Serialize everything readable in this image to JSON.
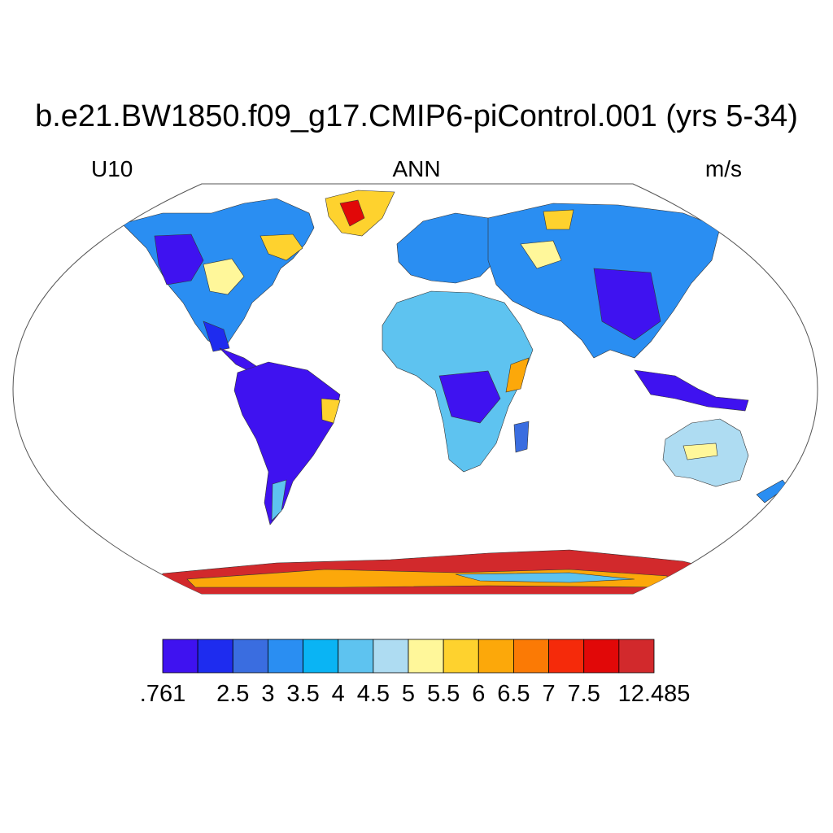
{
  "title": "b.e21.BW1850.f09_g17.CMIP6-piControl.001 (yrs 5-34)",
  "subtitle_left": "U10",
  "subtitle_center": "ANN",
  "subtitle_right": "m/s",
  "projection": "Robinson",
  "colorbar": {
    "colors": [
      "#3f12f0",
      "#1e2cef",
      "#3a6de0",
      "#2a8ef2",
      "#0ab4f4",
      "#5ec3f0",
      "#aedcf2",
      "#fff79a",
      "#fed22e",
      "#fca80a",
      "#fb7a05",
      "#f52a0a",
      "#e10808",
      "#d2292c"
    ],
    "labels": [
      ".761",
      "2.5",
      "3",
      "3.5",
      "4",
      "4.5",
      "5",
      "5.5",
      "6",
      "6.5",
      "7",
      "7.5",
      "12.485"
    ]
  }
}
